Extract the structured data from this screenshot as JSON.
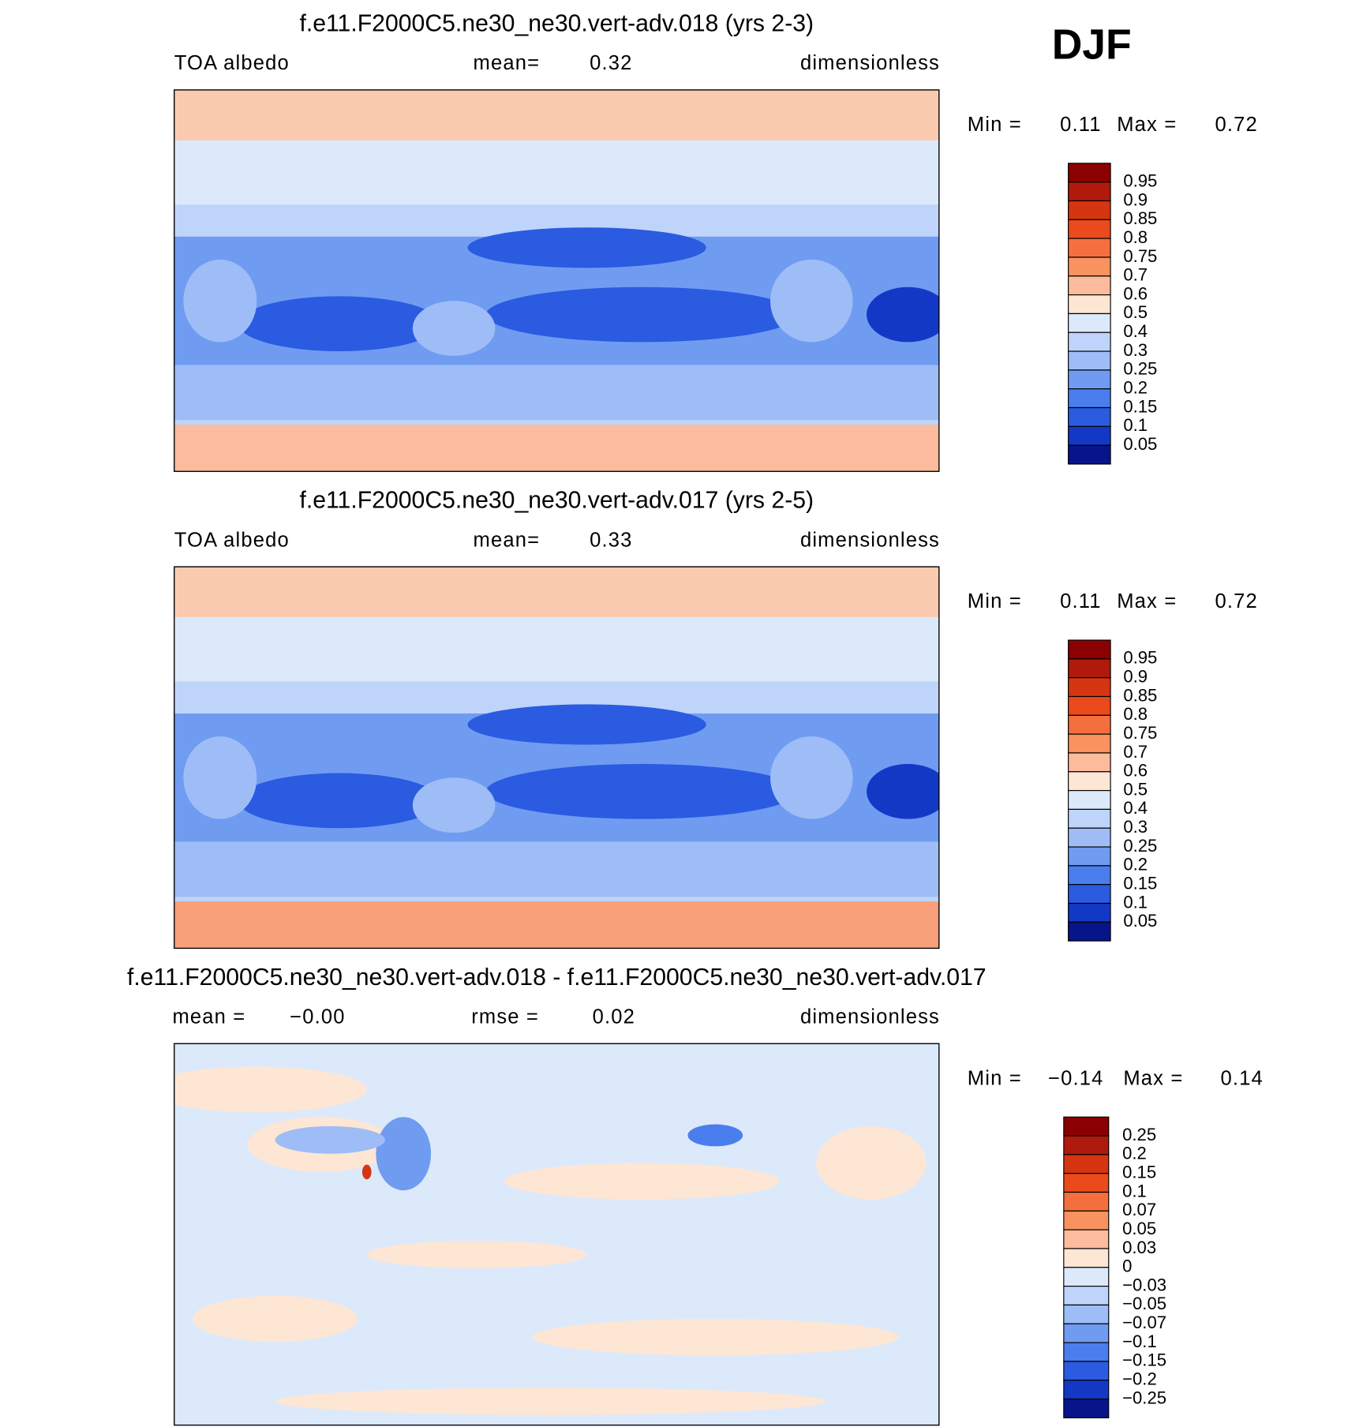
{
  "season": "DJF",
  "panels": [
    {
      "title": "f.e11.F2000C5.ne30_ne30.vert-adv.018 (yrs 2-3)",
      "header": [
        "TOA albedo",
        "mean=",
        "0.32",
        "dimensionless"
      ],
      "stats": [
        "Min =",
        "0.11",
        "Max =",
        "0.72"
      ],
      "colorbar": {
        "labels": [
          "0.95",
          "0.9",
          "0.85",
          "0.8",
          "0.75",
          "0.7",
          "0.6",
          "0.5",
          "0.4",
          "0.3",
          "0.25",
          "0.2",
          "0.15",
          "0.1",
          "0.05"
        ],
        "colors": [
          "#8b0000",
          "#b01a0c",
          "#d63512",
          "#ea4a1c",
          "#f56f3e",
          "#f8925f",
          "#fbbb9c",
          "#fde6d4",
          "#dce9fb",
          "#bfd4fa",
          "#9ebdf6",
          "#6f9cf1",
          "#4a7eee",
          "#2a5be0",
          "#1438c6",
          "#08148a"
        ]
      }
    },
    {
      "title": "f.e11.F2000C5.ne30_ne30.vert-adv.017 (yrs 2-5)",
      "header": [
        "TOA albedo",
        "mean=",
        "0.33",
        "dimensionless"
      ],
      "stats": [
        "Min =",
        "0.11",
        "Max =",
        "0.72"
      ],
      "colorbar": {
        "labels": [
          "0.95",
          "0.9",
          "0.85",
          "0.8",
          "0.75",
          "0.7",
          "0.6",
          "0.5",
          "0.4",
          "0.3",
          "0.25",
          "0.2",
          "0.15",
          "0.1",
          "0.05"
        ],
        "colors": [
          "#8b0000",
          "#b01a0c",
          "#d63512",
          "#ea4a1c",
          "#f56f3e",
          "#f8925f",
          "#fbbb9c",
          "#fde6d4",
          "#dce9fb",
          "#bfd4fa",
          "#9ebdf6",
          "#6f9cf1",
          "#4a7eee",
          "#2a5be0",
          "#1438c6",
          "#08148a"
        ]
      }
    },
    {
      "title": "f.e11.F2000C5.ne30_ne30.vert-adv.018 - f.e11.F2000C5.ne30_ne30.vert-adv.017",
      "header": [
        "mean =",
        "−0.00",
        "rmse =",
        "0.02",
        "dimensionless"
      ],
      "stats": [
        "Min =",
        "−0.14",
        "Max =",
        "0.14"
      ],
      "colorbar": {
        "labels": [
          "0.25",
          "0.2",
          "0.15",
          "0.1",
          "0.07",
          "0.05",
          "0.03",
          "0",
          "−0.03",
          "−0.05",
          "−0.07",
          "−0.1",
          "−0.15",
          "−0.2",
          "−0.25"
        ],
        "colors": [
          "#8b0000",
          "#b01a0c",
          "#d63512",
          "#ea4a1c",
          "#f56f3e",
          "#f8925f",
          "#fbbb9c",
          "#fde6d4",
          "#dce9fb",
          "#bfd4fa",
          "#9ebdf6",
          "#6f9cf1",
          "#4a7eee",
          "#2a5be0",
          "#1438c6",
          "#08148a"
        ]
      }
    }
  ]
}
